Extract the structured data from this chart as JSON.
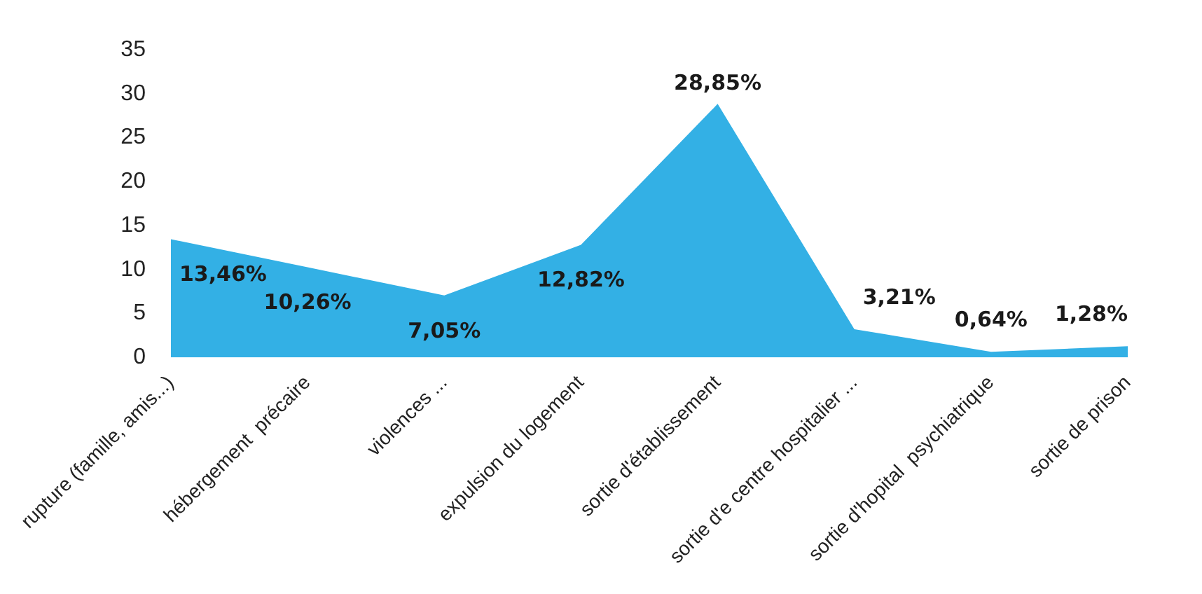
{
  "chart_data": {
    "type": "area",
    "categories": [
      "rupture (famille, amis...)",
      "hébergement  précaire",
      "violences ...",
      "expulsion du logement",
      "sortie d'établissement",
      "sortie d'e centre hospitalier ...",
      "sortie d'hopital  psychiatrique",
      "sortie de prison"
    ],
    "series": [
      {
        "color": "#33b0e5",
        "values": [
          13.46,
          10.26,
          7.05,
          12.82,
          28.85,
          3.21,
          0.64,
          1.28
        ],
        "value_labels": [
          "13,46%",
          "10,26%",
          "7,05%",
          "12,82%",
          "28,85%",
          "3,21%",
          "0,64%",
          "1,28%"
        ]
      }
    ],
    "ylim": [
      0,
      35
    ],
    "yticks": [
      0,
      5,
      10,
      15,
      20,
      25,
      30,
      35
    ],
    "grid": false,
    "legend": false
  }
}
